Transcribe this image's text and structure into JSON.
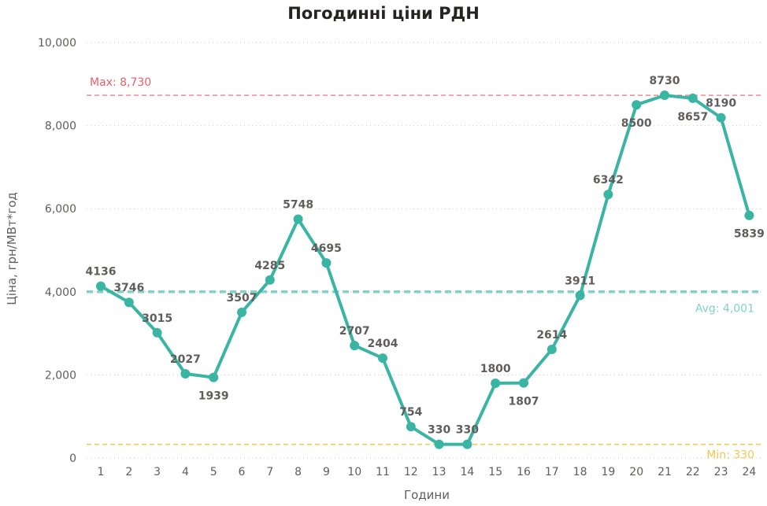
{
  "chart_data": {
    "type": "line",
    "title": "Погодинні ціни РДН",
    "xlabel": "Години",
    "ylabel": "Ціна, грн/МВт*год",
    "ylim": [
      0,
      10000
    ],
    "y_ticks": [
      "0",
      "2,000",
      "4,000",
      "6,000",
      "8,000",
      "10,000"
    ],
    "y_tick_values": [
      0,
      2000,
      4000,
      6000,
      8000,
      10000
    ],
    "grid": true,
    "categories": [
      "1",
      "2",
      "3",
      "4",
      "5",
      "6",
      "7",
      "8",
      "9",
      "10",
      "11",
      "12",
      "13",
      "14",
      "15",
      "16",
      "17",
      "18",
      "19",
      "20",
      "21",
      "22",
      "23",
      "24"
    ],
    "series": [
      {
        "values": [
          4136,
          3746,
          3015,
          2027,
          1939,
          3507,
          4285,
          5748,
          4695,
          2707,
          2404,
          754,
          330,
          330,
          1800,
          1807,
          2614,
          3911,
          6342,
          8500,
          8730,
          8657,
          8190,
          5839
        ],
        "labels": [
          "4136",
          "3746",
          "3015",
          "2027",
          "1939",
          "3507",
          "4285",
          "5748",
          "4695",
          "2707",
          "2404",
          "754",
          "330",
          "330",
          "1800",
          "1807",
          "2614",
          "3911",
          "6342",
          "8500",
          "8730",
          "8657",
          "8190",
          "5839"
        ],
        "color": "#3ab5a3"
      }
    ],
    "reference_lines": [
      {
        "label": "Max: 8,730",
        "value": 8730,
        "color": "#e8606a"
      },
      {
        "label": "Avg: 4,001",
        "value": 4001,
        "color": "#7fd3cb"
      },
      {
        "label": "Min: 330",
        "value": 330,
        "color": "#f0c84e"
      }
    ]
  }
}
